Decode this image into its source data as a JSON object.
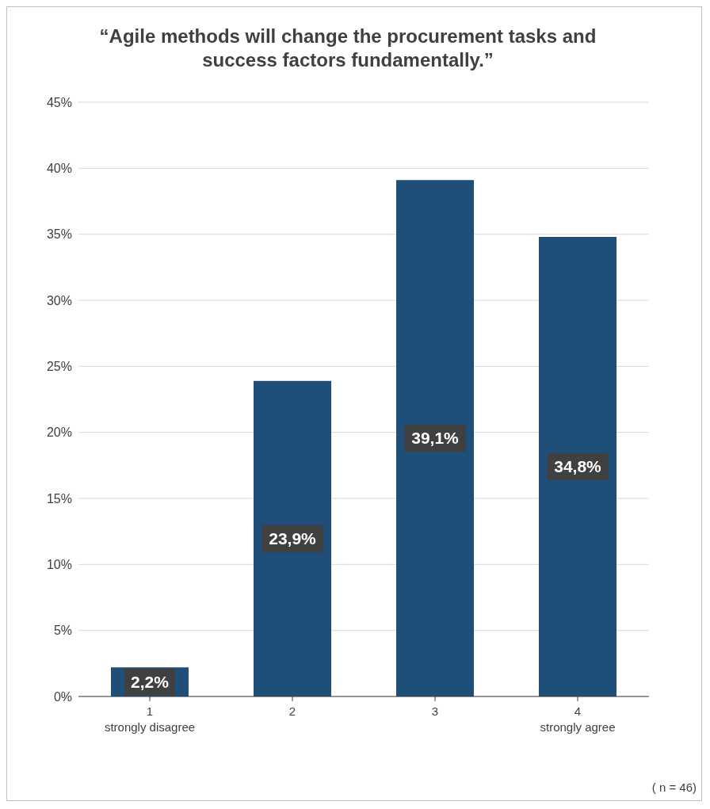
{
  "chart_data": {
    "type": "bar",
    "title": "“Agile methods will change the procurement tasks and success factors fundamentally.”",
    "categories": [
      "1\nstrongly disagree",
      "2",
      "3",
      "4\nstrongly agree"
    ],
    "values": [
      2.2,
      23.9,
      39.1,
      34.8
    ],
    "value_labels": [
      "2,2%",
      "23,9%",
      "39,1%",
      "34,8%"
    ],
    "color": "#1f4e79",
    "ylim": [
      0,
      45
    ],
    "yticks": [
      {
        "value": 0,
        "label": "0%"
      },
      {
        "value": 5,
        "label": "5%"
      },
      {
        "value": 10,
        "label": "10%"
      },
      {
        "value": 15,
        "label": "15%"
      },
      {
        "value": 20,
        "label": "20%"
      },
      {
        "value": 25,
        "label": "25%"
      },
      {
        "value": 30,
        "label": "30%"
      },
      {
        "value": 35,
        "label": "35%"
      },
      {
        "value": 40,
        "label": "40%"
      },
      {
        "value": 45,
        "label": "45%"
      }
    ],
    "grid": "y",
    "annotations": [
      "( n = 46)"
    ]
  }
}
